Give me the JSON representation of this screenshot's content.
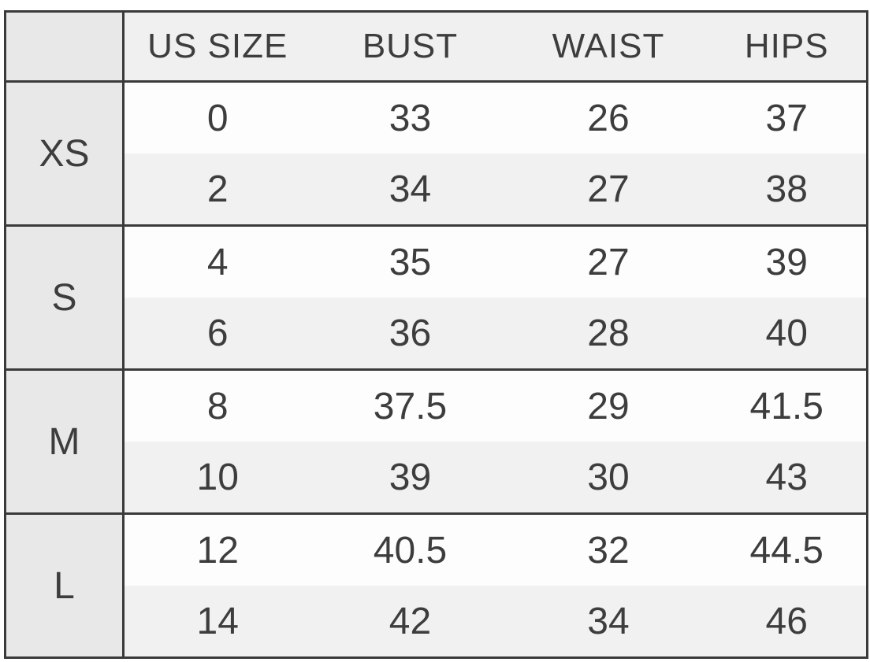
{
  "chart_data": {
    "type": "table",
    "columns": [
      "US SIZE",
      "BUST",
      "WAIST",
      "HIPS"
    ],
    "groups": [
      {
        "label": "XS",
        "rows": [
          [
            "0",
            "33",
            "26",
            "37"
          ],
          [
            "2",
            "34",
            "27",
            "38"
          ]
        ]
      },
      {
        "label": "S",
        "rows": [
          [
            "4",
            "35",
            "27",
            "39"
          ],
          [
            "6",
            "36",
            "28",
            "40"
          ]
        ]
      },
      {
        "label": "M",
        "rows": [
          [
            "8",
            "37.5",
            "29",
            "41.5"
          ],
          [
            "10",
            "39",
            "30",
            "43"
          ]
        ]
      },
      {
        "label": "L",
        "rows": [
          [
            "12",
            "40.5",
            "32",
            "44.5"
          ],
          [
            "14",
            "42",
            "34",
            "46"
          ]
        ]
      }
    ]
  },
  "colors": {
    "page_bg": "#ffffff",
    "border": "#3a3a3a",
    "header_bg": "#f0f0f0",
    "label_col_bg": "#e8e8e8",
    "row_even_bg": "#fdfdfd",
    "row_odd_bg": "#f1f1f1",
    "text": "#3d3d3d"
  }
}
